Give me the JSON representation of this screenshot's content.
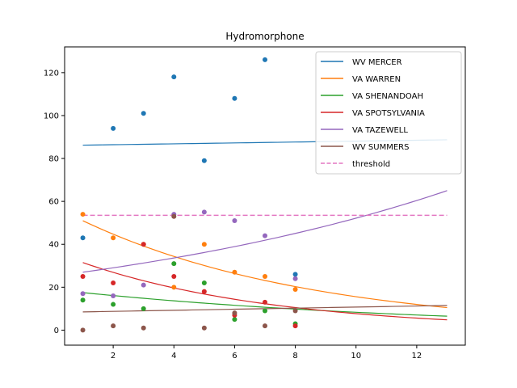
{
  "chart_data": {
    "type": "scatter",
    "title": "Hydromorphone",
    "xlabel": "",
    "ylabel": "",
    "xlim": [
      0.4,
      13.6
    ],
    "ylim": [
      -7,
      132
    ],
    "xticks": [
      2,
      4,
      6,
      8,
      10,
      12
    ],
    "yticks": [
      0,
      20,
      40,
      60,
      80,
      100,
      120
    ],
    "grid": false,
    "legend_position": "top-right",
    "series": [
      {
        "name": "WV MERCER",
        "color": "#1f77b4",
        "points": [
          [
            1,
            43
          ],
          [
            2,
            94
          ],
          [
            3,
            101
          ],
          [
            4,
            118
          ],
          [
            5,
            79
          ],
          [
            6,
            108
          ],
          [
            7,
            126
          ],
          [
            8,
            26
          ]
        ],
        "trend": {
          "model": "linear",
          "x_range": [
            1,
            13
          ],
          "y_start": 86.2,
          "y_end": 88.7
        }
      },
      {
        "name": "VA WARREN",
        "color": "#ff7f0e",
        "points": [
          [
            1,
            54
          ],
          [
            2,
            43
          ],
          [
            3,
            40
          ],
          [
            4,
            20
          ],
          [
            5,
            40
          ],
          [
            6,
            27
          ],
          [
            7,
            25
          ],
          [
            8,
            19
          ]
        ],
        "trend": {
          "model": "exponential",
          "x_range": [
            1,
            13
          ],
          "y_start": 51,
          "y_end": 10.5
        }
      },
      {
        "name": "VA SHENANDOAH",
        "color": "#2ca02c",
        "points": [
          [
            1,
            14
          ],
          [
            2,
            12
          ],
          [
            3,
            10
          ],
          [
            4,
            31
          ],
          [
            5,
            22
          ],
          [
            6,
            5
          ],
          [
            7,
            9
          ],
          [
            8,
            3
          ]
        ],
        "trend": {
          "model": "exponential",
          "x_range": [
            1,
            13
          ],
          "y_start": 17.5,
          "y_end": 6.5
        }
      },
      {
        "name": "VA SPOTSYLVANIA",
        "color": "#d62728",
        "points": [
          [
            1,
            25
          ],
          [
            2,
            22
          ],
          [
            3,
            40
          ],
          [
            4,
            25
          ],
          [
            5,
            18
          ],
          [
            6,
            7
          ],
          [
            7,
            13
          ],
          [
            8,
            2
          ]
        ],
        "trend": {
          "model": "exponential",
          "x_range": [
            1,
            13
          ],
          "y_start": 31.5,
          "y_end": 4.8
        }
      },
      {
        "name": "VA TAZEWELL",
        "color": "#9467bd",
        "points": [
          [
            1,
            17
          ],
          [
            2,
            16
          ],
          [
            3,
            21
          ],
          [
            4,
            54
          ],
          [
            5,
            55
          ],
          [
            6,
            51
          ],
          [
            7,
            44
          ],
          [
            8,
            24
          ]
        ],
        "trend": {
          "model": "exponential",
          "x_range": [
            1,
            13
          ],
          "y_start": 27,
          "y_end": 65
        }
      },
      {
        "name": "WV SUMMERS",
        "color": "#8c564b",
        "points": [
          [
            1,
            0
          ],
          [
            2,
            2
          ],
          [
            3,
            1
          ],
          [
            4,
            53
          ],
          [
            5,
            1
          ],
          [
            6,
            8
          ],
          [
            7,
            2
          ],
          [
            8,
            9
          ]
        ],
        "trend": {
          "model": "linear",
          "x_range": [
            1,
            13
          ],
          "y_start": 8.5,
          "y_end": 11.5
        }
      }
    ],
    "threshold": {
      "name": "threshold",
      "value": 53.5,
      "x_range": [
        1,
        13
      ],
      "color": "#e377c2",
      "style": "dashed"
    }
  }
}
